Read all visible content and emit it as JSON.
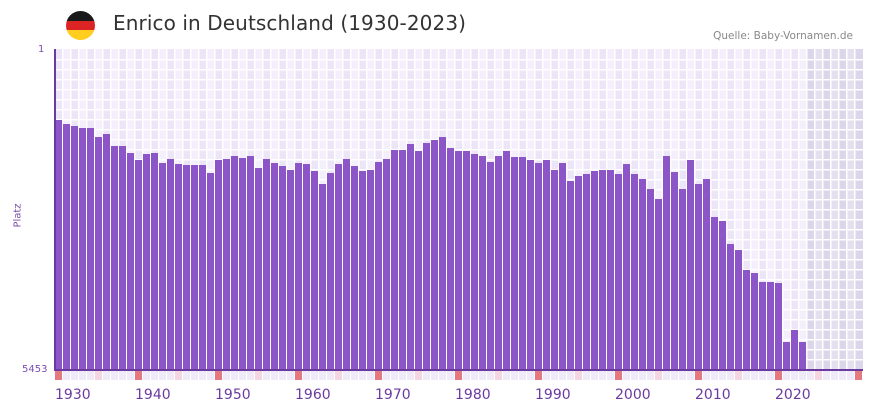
{
  "header": {
    "title": "Enrico in Deutschland (1930-2023)",
    "source": "Quelle: Baby-Vornamen.de",
    "flag_colors": [
      "#1a1a1a",
      "#dd2424",
      "#ffce1f"
    ]
  },
  "axis": {
    "y_top_label": "1",
    "y_bottom_label": "5453",
    "y_title": "Platz",
    "x_labels": [
      "1930",
      "1940",
      "1950",
      "1960",
      "1970",
      "1980",
      "1990",
      "2000",
      "2010",
      "2020"
    ]
  },
  "colors": {
    "bar": "#8c55c8",
    "axis": "#6a3aa0",
    "grid_a": "#f3effb",
    "grid_b": "#ebe5f7",
    "future_a": "#e4e0ee",
    "future_b": "#dcd6ea",
    "marker_decade": "#e47a7f",
    "marker_half": "#f5d6e0",
    "marker_other": "#eeeaf8"
  },
  "chart_data": {
    "type": "bar",
    "title": "Enrico in Deutschland (1930-2023)",
    "xlabel": "",
    "ylabel": "Platz",
    "ylim": [
      5453,
      1
    ],
    "y_inverted": true,
    "x_range": [
      1930,
      2030
    ],
    "shaded_future_from": 2024,
    "grid": true,
    "legend": null,
    "source": "Quelle: Baby-Vornamen.de",
    "x": [
      1930,
      1931,
      1932,
      1933,
      1934,
      1935,
      1936,
      1937,
      1938,
      1939,
      1940,
      1941,
      1942,
      1943,
      1944,
      1945,
      1946,
      1947,
      1948,
      1949,
      1950,
      1951,
      1952,
      1953,
      1954,
      1955,
      1956,
      1957,
      1958,
      1959,
      1960,
      1961,
      1962,
      1963,
      1964,
      1965,
      1966,
      1967,
      1968,
      1969,
      1970,
      1971,
      1972,
      1973,
      1974,
      1975,
      1976,
      1977,
      1978,
      1979,
      1980,
      1981,
      1982,
      1983,
      1984,
      1985,
      1986,
      1987,
      1988,
      1989,
      1990,
      1991,
      1992,
      1993,
      1994,
      1995,
      1996,
      1997,
      1998,
      1999,
      2000,
      2001,
      2002,
      2003,
      2004,
      2005,
      2006,
      2007,
      2008,
      2009,
      2010,
      2011,
      2012,
      2013,
      2014,
      2015,
      2016,
      2017,
      2018,
      2019,
      2020,
      2021,
      2022,
      2023
    ],
    "values": [
      1210,
      1280,
      1310,
      1350,
      1350,
      1500,
      1450,
      1650,
      1640,
      1770,
      1890,
      1790,
      1760,
      1930,
      1870,
      1960,
      1970,
      1970,
      1970,
      2110,
      1890,
      1870,
      1820,
      1850,
      1820,
      2020,
      1870,
      1930,
      1980,
      2050,
      1930,
      1960,
      2070,
      2300,
      2100,
      1960,
      1860,
      1980,
      2080,
      2060,
      1920,
      1870,
      1710,
      1710,
      1620,
      1740,
      1600,
      1550,
      1500,
      1690,
      1740,
      1740,
      1790,
      1820,
      1920,
      1820,
      1730,
      1840,
      1840,
      1890,
      1940,
      1890,
      2060,
      1940,
      2240,
      2150,
      2120,
      2080,
      2060,
      2060,
      2120,
      1960,
      2120,
      2200,
      2370,
      2550,
      1810,
      2090,
      2370,
      1890,
      2300,
      2200,
      2850,
      2920,
      3320,
      3420,
      3750,
      3800,
      3950,
      3950,
      3980,
      4970,
      4770,
      4970
    ]
  }
}
